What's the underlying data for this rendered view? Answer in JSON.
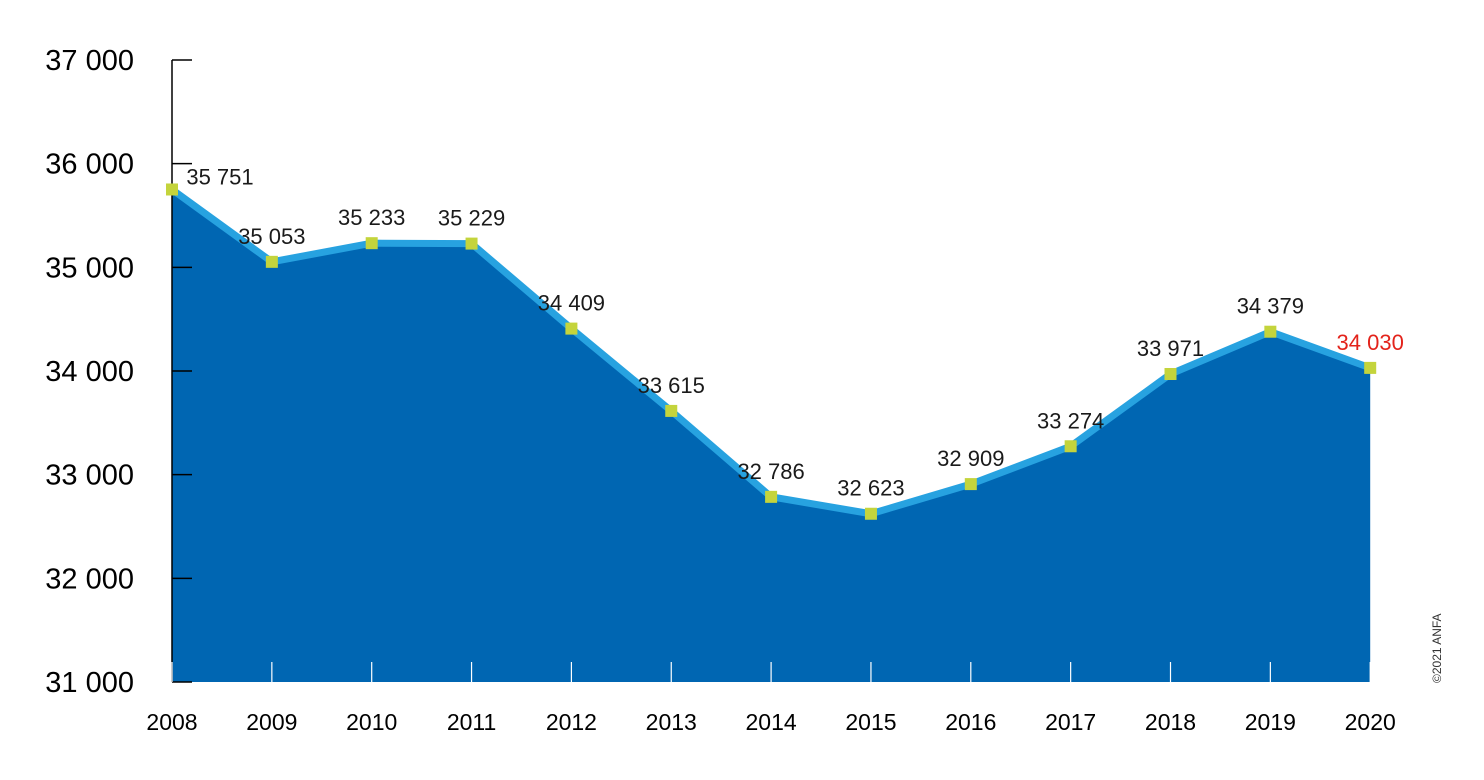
{
  "chart_data": {
    "type": "area",
    "x": [
      "2008",
      "2009",
      "2010",
      "2011",
      "2012",
      "2013",
      "2014",
      "2015",
      "2016",
      "2017",
      "2018",
      "2019",
      "2020"
    ],
    "values": [
      35751,
      35053,
      35233,
      35229,
      34409,
      33615,
      32786,
      32623,
      32909,
      33274,
      33971,
      34379,
      34030
    ],
    "data_labels": [
      "35 751",
      "35 053",
      "35 233",
      "35 229",
      "34 409",
      "33 615",
      "32 786",
      "32 623",
      "32 909",
      "33 274",
      "33 971",
      "34 379",
      "34 030"
    ],
    "yticks": [
      31000,
      32000,
      33000,
      34000,
      35000,
      36000,
      37000
    ],
    "ytick_labels": [
      "31 000",
      "32 000",
      "33 000",
      "34 000",
      "35 000",
      "36 000",
      "37 000"
    ],
    "ylim": [
      31000,
      37000
    ],
    "title": "",
    "xlabel": "",
    "ylabel": "",
    "grid": false,
    "colors": {
      "fill": "#0066b2",
      "line": "#27a2e0",
      "marker": "#c4d43c",
      "highlight_label": "#e3231b",
      "text": "#1a1a1a"
    },
    "highlight_index": 12
  },
  "credit": "©2021 ANFA"
}
